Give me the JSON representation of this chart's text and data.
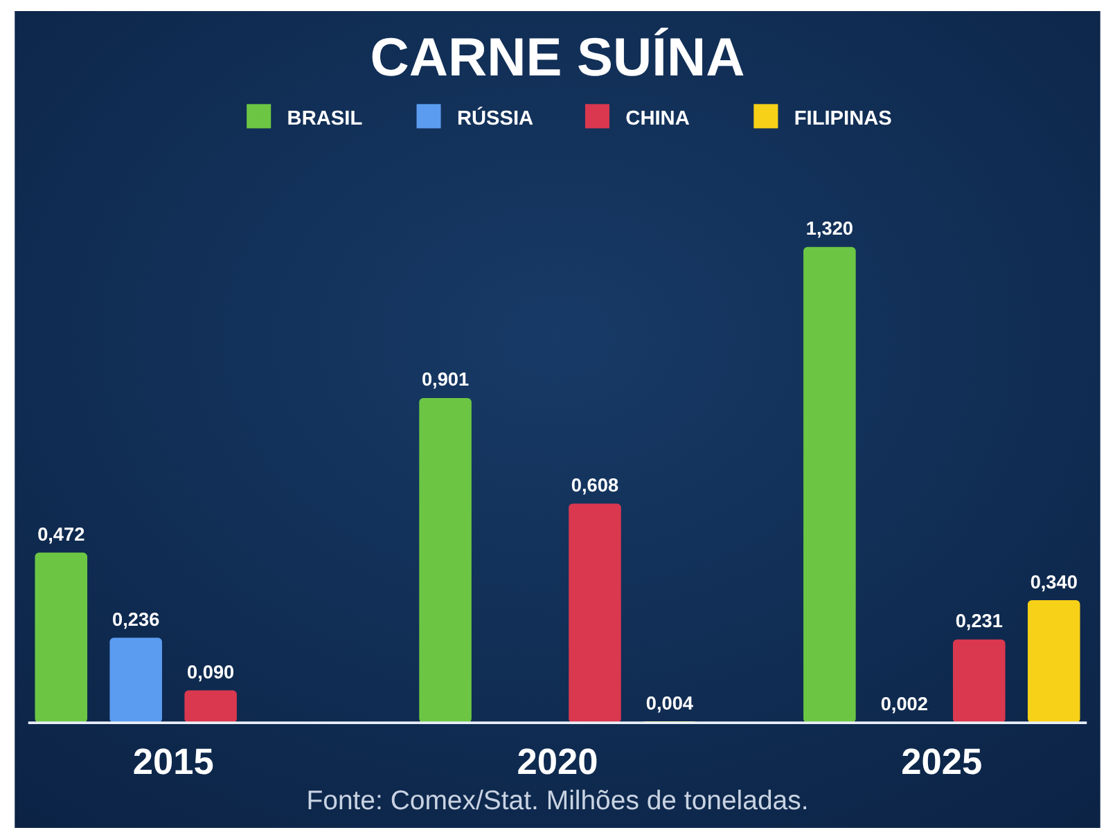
{
  "chart_data": {
    "type": "bar",
    "title": "CARNE SUÍNA",
    "categories": [
      "2015",
      "2020",
      "2025"
    ],
    "legend": "top",
    "annotations": [
      "Fonte: Comex/Stat. Milhões de toneladas."
    ],
    "series": [
      {
        "name": "BRASIL",
        "color": "#6cc644",
        "values": [
          0.472,
          0.901,
          1.32
        ],
        "value_labels": [
          "0,472",
          "0,901",
          "1,320"
        ]
      },
      {
        "name": "RÚSSIA",
        "color": "#5b9cf0",
        "values": [
          0.236,
          null,
          0.002
        ],
        "value_labels": [
          "0,236",
          null,
          "0,002"
        ]
      },
      {
        "name": "CHINA",
        "color": "#d9384f",
        "values": [
          0.09,
          0.608,
          0.231
        ],
        "value_labels": [
          "0,090",
          "0,608",
          "0,231"
        ]
      },
      {
        "name": "FILIPINAS",
        "color": "#f7d117",
        "values": [
          null,
          0.004,
          0.34
        ],
        "value_labels": [
          null,
          "0,004",
          "0,340"
        ]
      }
    ]
  }
}
